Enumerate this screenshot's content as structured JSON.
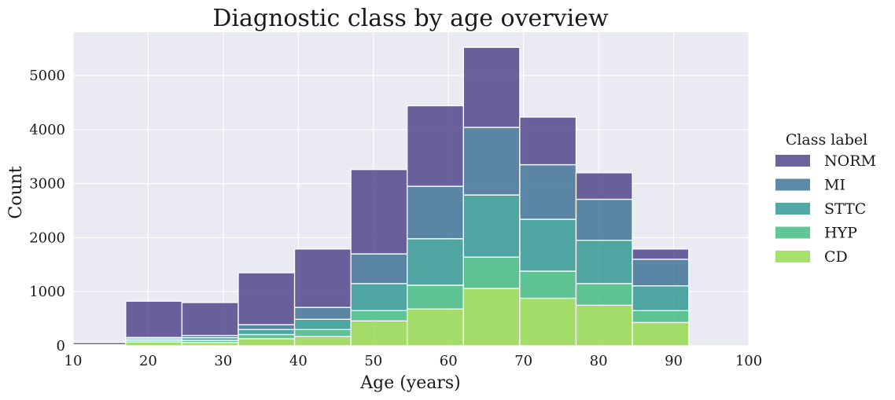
{
  "chart_data": {
    "type": "bar",
    "stacked": true,
    "histogram": true,
    "title": "Diagnostic class by age overview",
    "xlabel": "Age (years)",
    "ylabel": "Count",
    "xlim": [
      10,
      100
    ],
    "ylim": [
      0,
      5800
    ],
    "xticks": [
      "10",
      "20",
      "30",
      "40",
      "50",
      "60",
      "70",
      "80",
      "90",
      "100"
    ],
    "yticks": [
      "0",
      "1000",
      "2000",
      "3000",
      "4000",
      "5000"
    ],
    "grid": true,
    "legend_title": "Class label",
    "legend_position": "right",
    "bins": [
      [
        9.5,
        17
      ],
      [
        17,
        24.5
      ],
      [
        24.5,
        32
      ],
      [
        32,
        39.5
      ],
      [
        39.5,
        47
      ],
      [
        47,
        54.5
      ],
      [
        54.5,
        62
      ],
      [
        62,
        69.5
      ],
      [
        69.5,
        77
      ],
      [
        77,
        84.5
      ],
      [
        84.5,
        92
      ]
    ],
    "series": [
      {
        "name": "CD",
        "color": "#8fd744",
        "values": [
          10,
          70,
          60,
          130,
          170,
          460,
          680,
          1060,
          880,
          750,
          430
        ]
      },
      {
        "name": "HYP",
        "color": "#35b779",
        "values": [
          5,
          30,
          40,
          80,
          130,
          190,
          440,
          580,
          500,
          400,
          220
        ]
      },
      {
        "name": "STTC",
        "color": "#21918c",
        "values": [
          5,
          30,
          50,
          90,
          190,
          500,
          860,
          1150,
          960,
          800,
          460
        ]
      },
      {
        "name": "MI",
        "color": "#31688e",
        "values": [
          0,
          25,
          40,
          90,
          220,
          550,
          970,
          1250,
          1010,
          760,
          490
        ]
      },
      {
        "name": "NORM",
        "color": "#443983",
        "values": [
          40,
          670,
          610,
          960,
          1080,
          1560,
          1490,
          1480,
          880,
          490,
          190
        ]
      }
    ],
    "legend_order": [
      "NORM",
      "MI",
      "STTC",
      "HYP",
      "CD"
    ]
  }
}
